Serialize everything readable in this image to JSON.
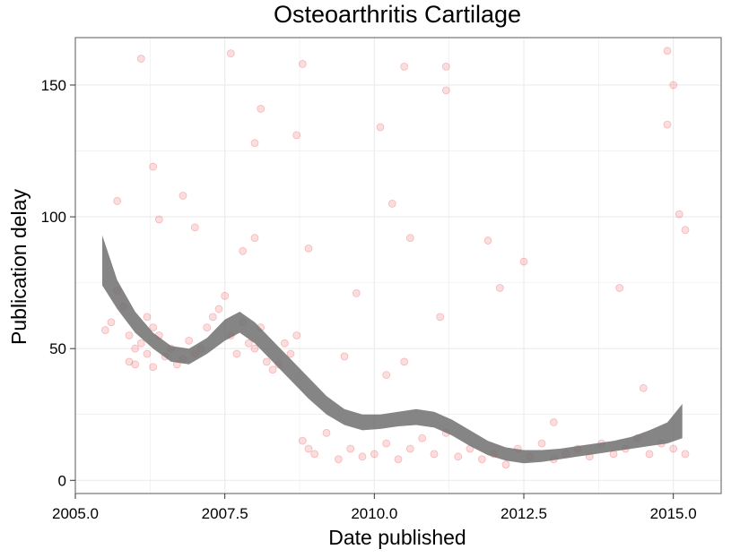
{
  "chart_data": {
    "type": "scatter",
    "title": "Osteoarthritis Cartilage",
    "xlabel": "Date published",
    "ylabel": "Publication delay",
    "xlim": [
      2005.0,
      2015.8
    ],
    "ylim": [
      -5,
      168
    ],
    "x_ticks": [
      2005.0,
      2007.5,
      2010.0,
      2012.5,
      2015.0
    ],
    "x_tick_labels": [
      "2005.0",
      "2007.5",
      "2010.0",
      "2012.5",
      "2015.0"
    ],
    "y_ticks": [
      0,
      50,
      100,
      150
    ],
    "y_tick_labels": [
      "0",
      "50",
      "100",
      "150"
    ],
    "grid": true,
    "colors": {
      "points": "#e8191e",
      "smooth_band": "#707070",
      "panel_border": "#7f7f7f",
      "grid": "#ebebeb"
    },
    "series": [
      {
        "kind": "points",
        "x": [
          2005.5,
          2005.6,
          2005.7,
          2005.8,
          2005.9,
          2005.9,
          2006.0,
          2006.0,
          2006.1,
          2006.2,
          2006.2,
          2006.3,
          2006.3,
          2006.4,
          2006.5,
          2006.6,
          2006.7,
          2006.8,
          2006.9,
          2007.0,
          2007.1,
          2007.2,
          2007.3,
          2007.4,
          2007.5,
          2007.6,
          2007.7,
          2007.8,
          2007.9,
          2008.0,
          2008.1,
          2008.2,
          2008.3,
          2008.4,
          2008.5,
          2008.6,
          2008.7,
          2008.8,
          2008.9,
          2009.0,
          2009.2,
          2009.4,
          2009.6,
          2009.8,
          2010.0,
          2010.2,
          2010.4,
          2010.6,
          2010.8,
          2011.0,
          2011.2,
          2011.4,
          2011.6,
          2011.8,
          2012.0,
          2012.2,
          2012.4,
          2012.6,
          2012.8,
          2013.0,
          2013.2,
          2013.4,
          2013.6,
          2013.8,
          2014.0,
          2014.2,
          2014.4,
          2014.6,
          2014.8,
          2015.0,
          2015.2,
          2005.7,
          2006.1,
          2006.3,
          2007.6,
          2008.0,
          2008.1,
          2008.7,
          2008.8,
          2010.1,
          2010.5,
          2011.2,
          2011.2,
          2014.9,
          2015.0,
          2014.9,
          2006.4,
          2006.8,
          2007.0,
          2008.9,
          2009.7,
          2010.3,
          2010.6,
          2011.1,
          2011.9,
          2012.5,
          2014.1,
          2015.1,
          2015.2,
          2010.5,
          2009.5,
          2010.2,
          2012.1,
          2013.0,
          2014.5,
          2008.0,
          2007.8
        ],
        "y": [
          57,
          60,
          72,
          66,
          55,
          45,
          50,
          44,
          52,
          62,
          48,
          58,
          43,
          55,
          47,
          50,
          44,
          46,
          53,
          48,
          50,
          58,
          62,
          65,
          70,
          55,
          48,
          60,
          52,
          50,
          58,
          45,
          42,
          44,
          52,
          48,
          55,
          15,
          12,
          10,
          18,
          8,
          12,
          9,
          10,
          14,
          8,
          12,
          16,
          10,
          18,
          9,
          12,
          8,
          10,
          6,
          12,
          9,
          14,
          8,
          10,
          12,
          9,
          14,
          10,
          12,
          16,
          10,
          14,
          12,
          10,
          106,
          160,
          119,
          162,
          128,
          141,
          131,
          158,
          134,
          157,
          157,
          148,
          163,
          150,
          135,
          99,
          108,
          96,
          88,
          71,
          105,
          92,
          62,
          91,
          83,
          73,
          101,
          95,
          45,
          47,
          40,
          73,
          22,
          35,
          92,
          87
        ]
      },
      {
        "kind": "smooth",
        "name": "",
        "x": [
          2005.45,
          2005.7,
          2006.0,
          2006.3,
          2006.6,
          2006.9,
          2007.2,
          2007.5,
          2007.75,
          2008.0,
          2008.3,
          2008.6,
          2008.9,
          2009.2,
          2009.5,
          2009.8,
          2010.1,
          2010.4,
          2010.7,
          2011.0,
          2011.3,
          2011.6,
          2011.9,
          2012.2,
          2012.5,
          2012.8,
          2013.1,
          2013.4,
          2013.7,
          2014.0,
          2014.3,
          2014.6,
          2014.9,
          2015.15
        ],
        "y": [
          82,
          70,
          60,
          53,
          48,
          47,
          51,
          57,
          60,
          56,
          49,
          42,
          35,
          28,
          24,
          22,
          22,
          23,
          24,
          23,
          20,
          16,
          12,
          10,
          9,
          9,
          10,
          11,
          12,
          13,
          14,
          16,
          18,
          22
        ],
        "y_low": [
          74,
          65,
          56,
          50,
          45,
          44,
          48,
          53,
          56,
          52,
          45,
          38,
          31,
          25,
          21,
          19,
          19.5,
          20.5,
          21,
          20,
          17,
          13,
          9.5,
          7.5,
          6.5,
          7,
          8,
          9,
          10,
          11,
          12,
          13,
          14,
          16
        ],
        "y_high": [
          93,
          76,
          64,
          56,
          51,
          50,
          54,
          61,
          64,
          60,
          53,
          46,
          39,
          32,
          27,
          25,
          25,
          26,
          27,
          26,
          23,
          19,
          15,
          12.5,
          11.5,
          11.5,
          12,
          13,
          14,
          15,
          16.5,
          19,
          22,
          29
        ]
      }
    ]
  }
}
